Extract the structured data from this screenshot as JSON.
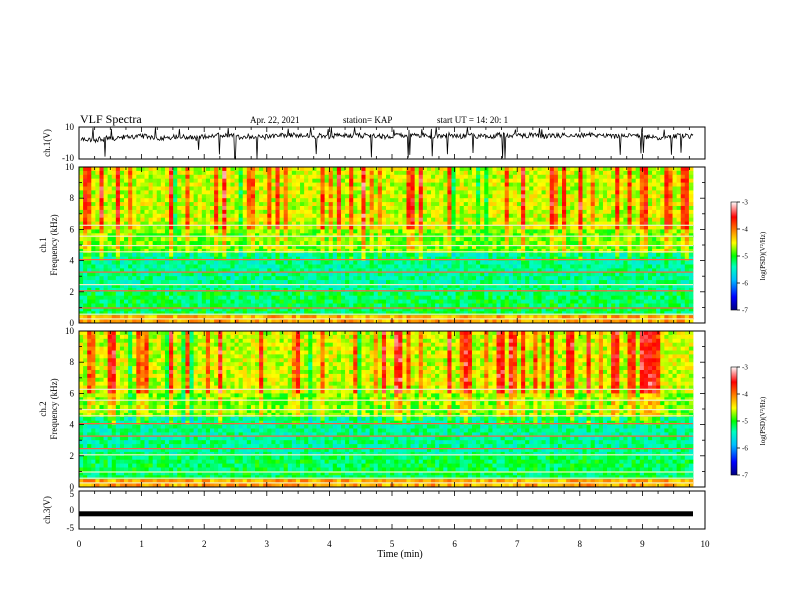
{
  "header": {
    "title": "VLF Spectra",
    "date": "Apr. 22, 2021",
    "station": "station= KAP",
    "start": "start UT =  14: 20: 1"
  },
  "colors": {
    "line": "#000000",
    "colormap": [
      "#000080",
      "#0000ff",
      "#00bfff",
      "#00ffbf",
      "#00ff00",
      "#ffff00",
      "#ff8000",
      "#ff0000",
      "#ffffff"
    ]
  },
  "chart_data": [
    {
      "type": "line",
      "name": "ch1-timeseries",
      "ylabel": "ch.1(V)",
      "ylim": [
        -10,
        10
      ],
      "yticks": [
        "10",
        "-10"
      ],
      "xlim": [
        0,
        10
      ],
      "description_values": "noisy waveform around ~0 to +5 V"
    },
    {
      "type": "heatmap",
      "name": "ch1-spectrogram",
      "ylabel_line1": "ch.1",
      "ylabel_line2": "Frequency (kHz)",
      "ylim": [
        0,
        10
      ],
      "yticks": [
        "0",
        "2",
        "4",
        "6",
        "8",
        "10"
      ],
      "xlim": [
        0,
        10
      ],
      "colorbar": {
        "label": "log(PSD)(V²/Hz)",
        "range": [
          -7,
          -3
        ],
        "ticks": [
          "-3",
          "-4",
          "-5",
          "-6",
          "-7"
        ]
      }
    },
    {
      "type": "heatmap",
      "name": "ch2-spectrogram",
      "ylabel_line1": "ch.2",
      "ylabel_line2": "Frequency (kHz)",
      "ylim": [
        0,
        10
      ],
      "yticks": [
        "0",
        "2",
        "4",
        "6",
        "8",
        "10"
      ],
      "xlim": [
        0,
        10
      ],
      "colorbar": {
        "label": "log(PSD)(V²/Hz)",
        "range": [
          -7,
          -3
        ],
        "ticks": [
          "-3",
          "-4",
          "-5",
          "-6",
          "-7"
        ]
      }
    },
    {
      "type": "line",
      "name": "ch3-timeseries",
      "ylabel": "ch.3(V)",
      "ylim": [
        -5,
        5
      ],
      "yticks": [
        "5",
        "0",
        "-5"
      ],
      "xlim": [
        0,
        10
      ],
      "xlabel": "Time (min)",
      "xticks": [
        "0",
        "1",
        "2",
        "3",
        "4",
        "5",
        "6",
        "7",
        "8",
        "9",
        "10"
      ],
      "constant_value": -1
    }
  ]
}
